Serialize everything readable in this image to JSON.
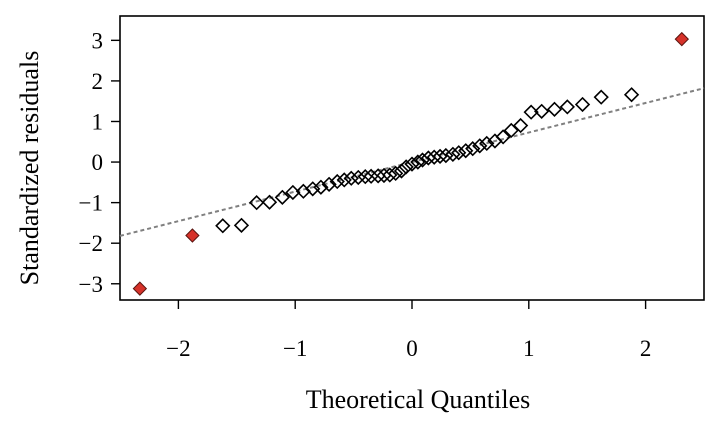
{
  "chart_data": {
    "type": "scatter",
    "title": "",
    "xlabel": "Theoretical Quantiles",
    "ylabel": "Standardized residuals",
    "xlim": [
      -2.5,
      2.5
    ],
    "ylim": [
      -3.4,
      3.6
    ],
    "xticks": [
      -2,
      -1,
      0,
      1,
      2
    ],
    "xtick_labels": [
      "−2",
      "−1",
      "0",
      "1",
      "2"
    ],
    "yticks": [
      -3,
      -2,
      -1,
      0,
      1,
      2,
      3
    ],
    "ytick_labels": [
      "−3",
      "−2",
      "−1",
      "0",
      "1",
      "2",
      "3"
    ],
    "grid": false,
    "marker": "open-diamond",
    "highlight_color": "#d6322a",
    "reference_line": {
      "style": "dashed",
      "color": "#808080",
      "points": [
        [
          -2.5,
          -1.82
        ],
        [
          2.5,
          1.82
        ]
      ]
    },
    "points": [
      {
        "x": -2.33,
        "y": -3.12,
        "highlight": true
      },
      {
        "x": -1.88,
        "y": -1.81,
        "highlight": true
      },
      {
        "x": -1.62,
        "y": -1.57
      },
      {
        "x": -1.46,
        "y": -1.56
      },
      {
        "x": -1.33,
        "y": -1.0
      },
      {
        "x": -1.22,
        "y": -0.99
      },
      {
        "x": -1.11,
        "y": -0.87
      },
      {
        "x": -1.02,
        "y": -0.75
      },
      {
        "x": -0.93,
        "y": -0.72
      },
      {
        "x": -0.85,
        "y": -0.66
      },
      {
        "x": -0.78,
        "y": -0.62
      },
      {
        "x": -0.71,
        "y": -0.55
      },
      {
        "x": -0.64,
        "y": -0.48
      },
      {
        "x": -0.58,
        "y": -0.44
      },
      {
        "x": -0.52,
        "y": -0.4
      },
      {
        "x": -0.46,
        "y": -0.38
      },
      {
        "x": -0.4,
        "y": -0.36
      },
      {
        "x": -0.35,
        "y": -0.35
      },
      {
        "x": -0.29,
        "y": -0.34
      },
      {
        "x": -0.24,
        "y": -0.33
      },
      {
        "x": -0.19,
        "y": -0.32
      },
      {
        "x": -0.14,
        "y": -0.28
      },
      {
        "x": -0.09,
        "y": -0.22
      },
      {
        "x": -0.05,
        "y": -0.12
      },
      {
        "x": 0.0,
        "y": -0.05
      },
      {
        "x": 0.05,
        "y": 0.0
      },
      {
        "x": 0.09,
        "y": 0.05
      },
      {
        "x": 0.14,
        "y": 0.1
      },
      {
        "x": 0.19,
        "y": 0.12
      },
      {
        "x": 0.24,
        "y": 0.14
      },
      {
        "x": 0.29,
        "y": 0.16
      },
      {
        "x": 0.35,
        "y": 0.19
      },
      {
        "x": 0.4,
        "y": 0.23
      },
      {
        "x": 0.46,
        "y": 0.28
      },
      {
        "x": 0.52,
        "y": 0.33
      },
      {
        "x": 0.58,
        "y": 0.4
      },
      {
        "x": 0.64,
        "y": 0.46
      },
      {
        "x": 0.71,
        "y": 0.52
      },
      {
        "x": 0.78,
        "y": 0.62
      },
      {
        "x": 0.85,
        "y": 0.78
      },
      {
        "x": 0.93,
        "y": 0.9
      },
      {
        "x": 1.02,
        "y": 1.23
      },
      {
        "x": 1.11,
        "y": 1.25
      },
      {
        "x": 1.22,
        "y": 1.3
      },
      {
        "x": 1.33,
        "y": 1.36
      },
      {
        "x": 1.46,
        "y": 1.42
      },
      {
        "x": 1.62,
        "y": 1.6
      },
      {
        "x": 1.88,
        "y": 1.66
      },
      {
        "x": 2.31,
        "y": 3.03,
        "highlight": true
      }
    ]
  }
}
